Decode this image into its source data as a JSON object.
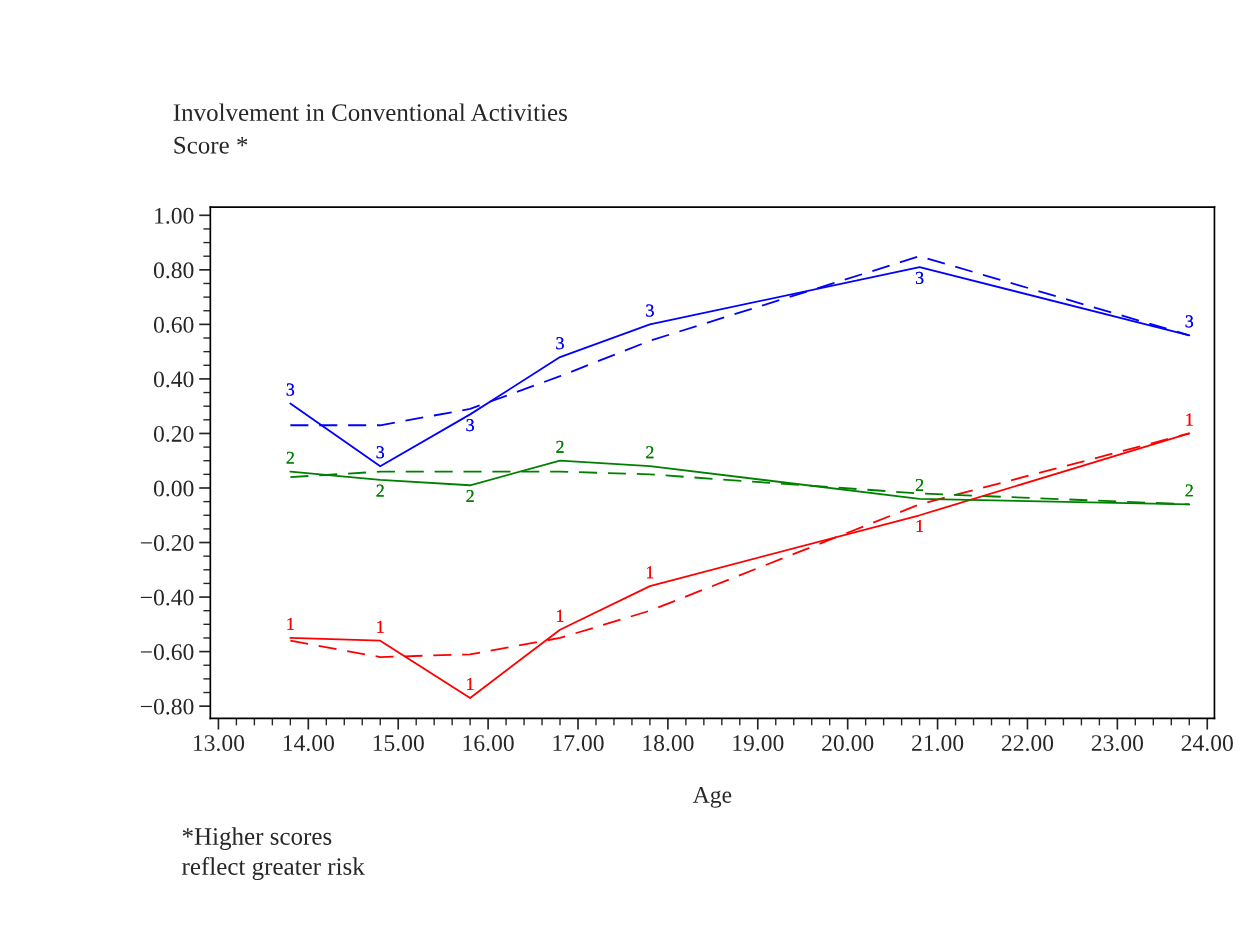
{
  "chart_data": {
    "type": "line",
    "title": "Involvement in Conventional Activities",
    "ylabel": "Score *",
    "xlabel": "Age",
    "annotations": [
      "*Higher scores\nreflect greater risk"
    ],
    "x": [
      13.8,
      14.8,
      15.8,
      16.8,
      17.8,
      20.8,
      23.8
    ],
    "series": [
      {
        "name": "1",
        "color": "#ff0000",
        "line_style": "solid",
        "values": [
          -0.55,
          -0.56,
          -0.77,
          -0.52,
          -0.36,
          -0.1,
          0.2
        ]
      },
      {
        "color": "#ff0000",
        "line_style": "dashed",
        "values": [
          -0.56,
          -0.62,
          -0.61,
          -0.55,
          -0.45,
          -0.06,
          0.2
        ]
      },
      {
        "name": "2",
        "color": "#008000",
        "line_style": "solid",
        "values": [
          0.06,
          0.03,
          0.01,
          0.1,
          0.08,
          -0.04,
          -0.06
        ]
      },
      {
        "color": "#008000",
        "line_style": "dashed",
        "values": [
          0.04,
          0.06,
          0.06,
          0.06,
          0.05,
          -0.02,
          -0.06
        ]
      },
      {
        "name": "3",
        "color": "#0000ff",
        "line_style": "solid",
        "values": [
          0.31,
          0.08,
          0.27,
          0.48,
          0.6,
          0.81,
          0.56
        ]
      },
      {
        "color": "#0000ff",
        "line_style": "dashed",
        "values": [
          0.23,
          0.23,
          0.29,
          0.41,
          0.54,
          0.85,
          0.56
        ]
      }
    ],
    "xlim": [
      12.91,
      24.08
    ],
    "xticks": [
      {
        "value": 13,
        "label": "13.00"
      },
      {
        "value": 14,
        "label": "14.00"
      },
      {
        "value": 15,
        "label": "15.00"
      },
      {
        "value": 16,
        "label": "16.00"
      },
      {
        "value": 17,
        "label": "17.00"
      },
      {
        "value": 18,
        "label": "18.00"
      },
      {
        "value": 19,
        "label": "19.00"
      },
      {
        "value": 20,
        "label": "20.00"
      },
      {
        "value": 21,
        "label": "21.00"
      },
      {
        "value": 22,
        "label": "22.00"
      },
      {
        "value": 23,
        "label": "23.00"
      },
      {
        "value": 24,
        "label": "24.00"
      }
    ],
    "ylim": [
      -0.845,
      1.03
    ],
    "yticks": [
      {
        "value": -0.8,
        "label": "−0.80"
      },
      {
        "value": -0.6,
        "label": "−0.60"
      },
      {
        "value": -0.4,
        "label": "−0.40"
      },
      {
        "value": -0.2,
        "label": "−0.20"
      },
      {
        "value": 0,
        "label": "0.00"
      },
      {
        "value": 0.2,
        "label": "0.20"
      },
      {
        "value": 0.4,
        "label": "0.40"
      },
      {
        "value": 0.6,
        "label": "0.60"
      },
      {
        "value": 0.8,
        "label": "0.80"
      },
      {
        "value": 1.0,
        "label": "1.00"
      }
    ],
    "grid": false,
    "legend": false,
    "marker": "none"
  }
}
